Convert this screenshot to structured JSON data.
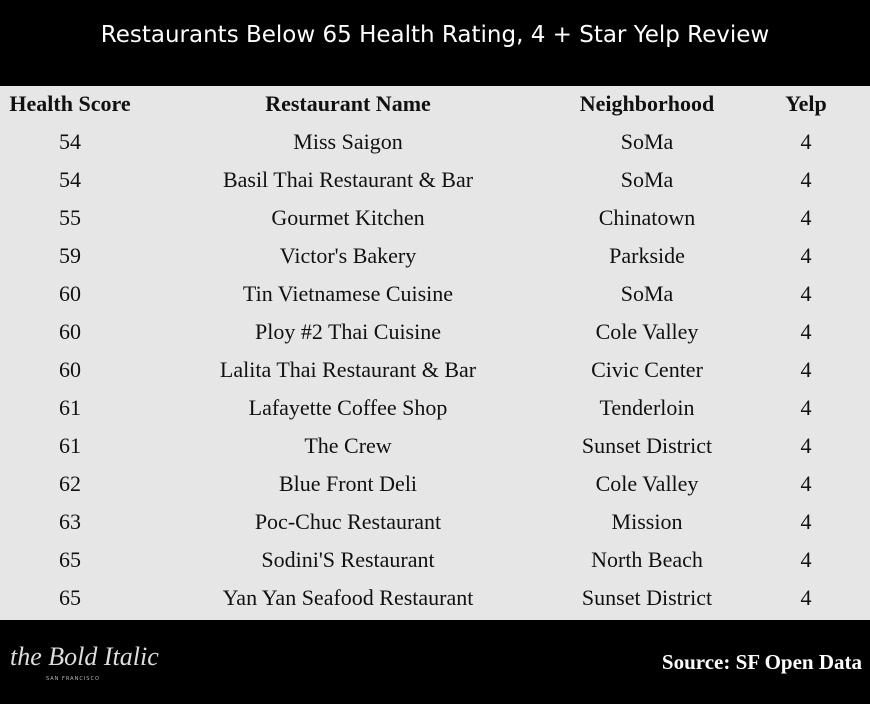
{
  "header": {
    "title": "Restaurants Below 65 Health Rating, 4 + Star Yelp Review"
  },
  "table": {
    "columns": [
      "Health Score",
      "Restaurant Name",
      "Neighborhood",
      "Yelp"
    ],
    "rows": [
      [
        54,
        "Miss Saigon",
        "SoMa",
        4
      ],
      [
        54,
        "Basil Thai Restaurant & Bar",
        "SoMa",
        4
      ],
      [
        55,
        "Gourmet Kitchen",
        "Chinatown",
        4
      ],
      [
        59,
        "Victor's Bakery",
        "Parkside",
        4
      ],
      [
        60,
        "Tin Vietnamese Cuisine",
        "SoMa",
        4
      ],
      [
        60,
        "Ploy #2 Thai Cuisine",
        "Cole Valley",
        4
      ],
      [
        60,
        "Lalita Thai Restaurant & Bar",
        "Civic Center",
        4
      ],
      [
        61,
        "Lafayette Coffee Shop",
        "Tenderloin",
        4
      ],
      [
        61,
        "The Crew",
        "Sunset District",
        4
      ],
      [
        62,
        "Blue Front Deli",
        "Cole Valley",
        4
      ],
      [
        63,
        "Poc-Chuc Restaurant",
        "Mission",
        4
      ],
      [
        65,
        "Sodini'S Restaurant",
        "North Beach",
        4
      ],
      [
        65,
        "Yan Yan Seafood Restaurant",
        "Sunset District",
        4
      ]
    ]
  },
  "footer": {
    "logo": "the Bold Italic",
    "logo_sub": "SAN FRANCISCO",
    "source": "Source: SF Open Data"
  }
}
